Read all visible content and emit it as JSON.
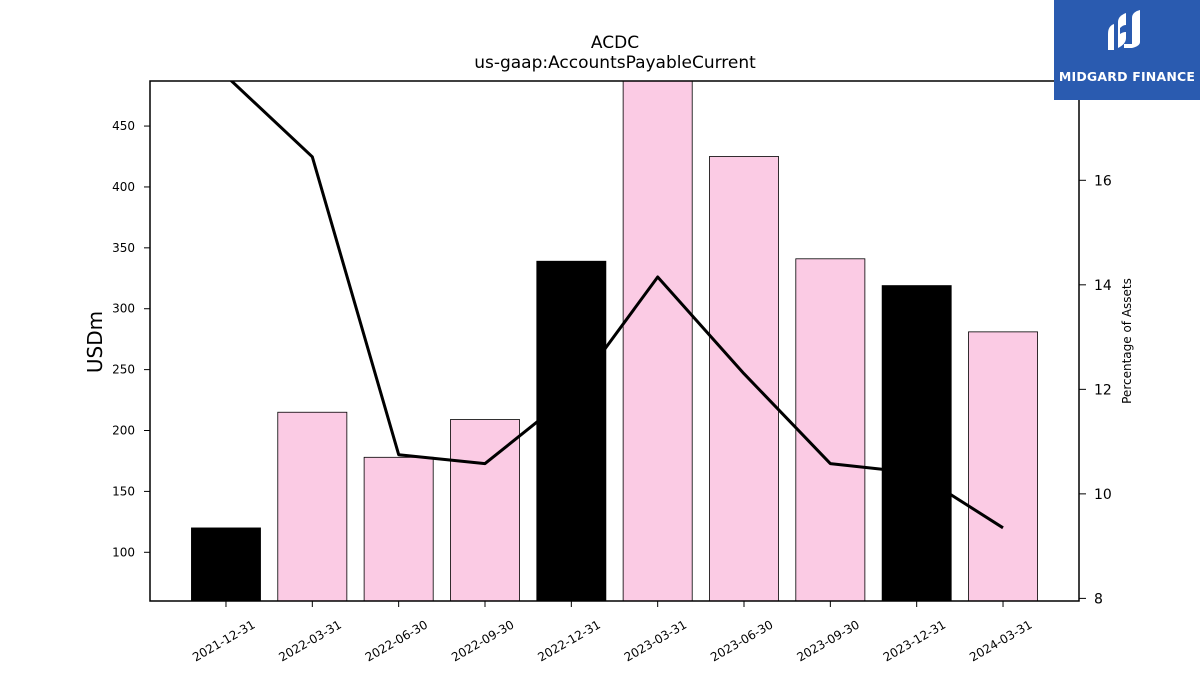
{
  "chart_data": {
    "type": "bar",
    "title": "ACDC",
    "subtitle": "us-gaap:AccountsPayableCurrent",
    "ylabel": "USDm",
    "y2label": "Percentage of Assets",
    "categories": [
      "2021-12-31",
      "2022-03-31",
      "2022-06-30",
      "2022-09-30",
      "2022-12-31",
      "2023-03-31",
      "2023-06-30",
      "2023-09-30",
      "2023-12-31",
      "2024-03-31"
    ],
    "series": [
      {
        "kind": "bar",
        "axis": "left",
        "values": [
          120,
          215,
          178,
          209,
          339,
          488,
          425,
          341,
          319,
          281
        ],
        "colors": [
          "#000000",
          "#fbcbe4",
          "#fbcbe4",
          "#fbcbe4",
          "#000000",
          "#fbcbe4",
          "#fbcbe4",
          "#fbcbe4",
          "#000000",
          "#fbcbe4"
        ]
      },
      {
        "kind": "line",
        "axis": "right",
        "color": "#000000",
        "values": [
          18.0,
          16.45,
          10.75,
          10.58,
          11.9,
          14.15,
          12.3,
          10.58,
          10.4,
          9.35
        ]
      }
    ],
    "ylim": [
      60,
      487
    ],
    "y2lim": [
      7.95,
      17.9
    ],
    "yticks": [
      100,
      150,
      200,
      250,
      300,
      350,
      400,
      450
    ],
    "y2ticks": [
      8,
      10,
      12,
      14,
      16
    ],
    "grid": false
  },
  "logo": {
    "text": "MIDGARD FINANCE",
    "background": "#2a5bb0"
  }
}
